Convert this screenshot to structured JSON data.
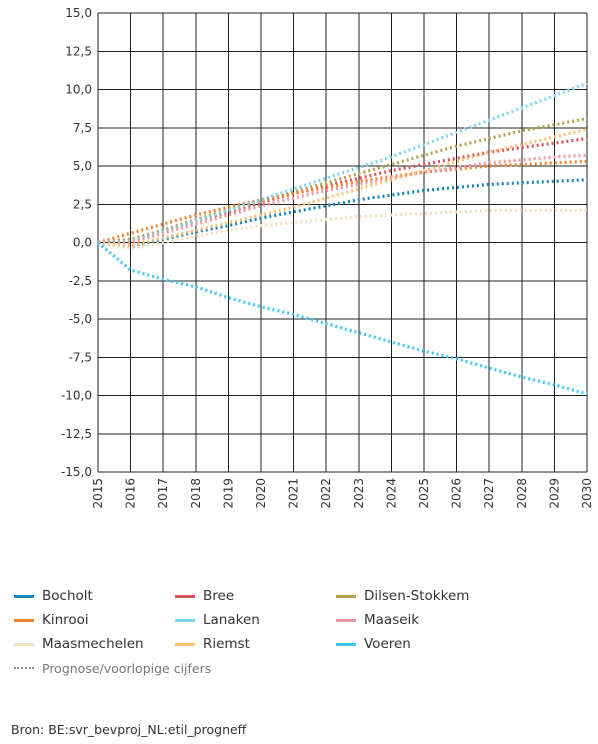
{
  "chart_data": {
    "type": "line",
    "x": [
      2015,
      2016,
      2017,
      2018,
      2019,
      2020,
      2021,
      2022,
      2023,
      2024,
      2025,
      2026,
      2027,
      2028,
      2029,
      2030
    ],
    "xlabels": [
      "2015",
      "2016",
      "2017",
      "2018",
      "2019",
      "2020",
      "2021",
      "2022",
      "2023",
      "2024",
      "2025",
      "2026",
      "2027",
      "2028",
      "2029",
      "2030"
    ],
    "ylim": [
      -15,
      15
    ],
    "yticks": [
      15,
      12.5,
      10,
      7.5,
      5,
      2.5,
      0,
      -2.5,
      -5,
      -7.5,
      -10,
      -12.5,
      -15
    ],
    "ytick_labels": [
      "15,0",
      "12,5",
      "10,0",
      "7,5",
      "5,0",
      "2,5",
      "0,0",
      "-2,5",
      "-5,0",
      "-7,5",
      "-10,0",
      "-12,5",
      "-15,0"
    ],
    "grid": true,
    "series": [
      {
        "name": "Bocholt",
        "color": "#1a86b8",
        "values": [
          0,
          -0.3,
          0.2,
          0.7,
          1.1,
          1.6,
          2.0,
          2.4,
          2.8,
          3.1,
          3.4,
          3.6,
          3.8,
          3.9,
          4.0,
          4.1
        ]
      },
      {
        "name": "Bree",
        "color": "#d9535c",
        "values": [
          0,
          0.2,
          0.8,
          1.4,
          2.0,
          2.6,
          3.2,
          3.7,
          4.2,
          4.7,
          5.1,
          5.5,
          5.9,
          6.2,
          6.5,
          6.8
        ]
      },
      {
        "name": "Dilsen-Stokkem",
        "color": "#b5a04f",
        "values": [
          0,
          0.2,
          0.8,
          1.5,
          2.1,
          2.7,
          3.3,
          3.9,
          4.5,
          5.1,
          5.7,
          6.3,
          6.8,
          7.3,
          7.7,
          8.1
        ]
      },
      {
        "name": "Kinrooi",
        "color": "#ee8434",
        "values": [
          0,
          0.6,
          1.2,
          1.8,
          2.3,
          2.8,
          3.2,
          3.6,
          4.0,
          4.3,
          4.6,
          4.8,
          5.0,
          5.1,
          5.2,
          5.3
        ]
      },
      {
        "name": "Lanaken",
        "color": "#7fd3e8",
        "values": [
          0,
          0.1,
          0.7,
          1.4,
          2.1,
          2.8,
          3.5,
          4.2,
          4.9,
          5.6,
          6.4,
          7.2,
          8.0,
          8.8,
          9.6,
          10.4
        ]
      },
      {
        "name": "Maaseik",
        "color": "#f0959b",
        "values": [
          0,
          0.0,
          0.6,
          1.2,
          1.8,
          2.4,
          2.9,
          3.4,
          3.8,
          4.2,
          4.6,
          4.9,
          5.2,
          5.4,
          5.6,
          5.7
        ]
      },
      {
        "name": "Maasmechelen",
        "color": "#f3e0bd",
        "values": [
          0,
          -0.4,
          0.0,
          0.4,
          0.8,
          1.1,
          1.3,
          1.5,
          1.7,
          1.8,
          1.9,
          2.0,
          2.1,
          2.1,
          2.1,
          2.1
        ]
      },
      {
        "name": "Riemst",
        "color": "#fbc173",
        "values": [
          0,
          -0.2,
          0.3,
          0.8,
          1.3,
          1.8,
          2.3,
          2.9,
          3.5,
          4.1,
          4.7,
          5.3,
          5.9,
          6.4,
          6.9,
          7.4
        ]
      },
      {
        "name": "Voeren",
        "color": "#40c6f2",
        "values": [
          0,
          -1.8,
          -2.4,
          -2.9,
          -3.6,
          -4.2,
          -4.7,
          -5.3,
          -5.9,
          -6.5,
          -7.1,
          -7.6,
          -8.2,
          -8.8,
          -9.3,
          -9.9
        ]
      }
    ]
  },
  "legend": {
    "items": [
      {
        "label": "Bocholt",
        "color": "#1a86b8"
      },
      {
        "label": "Bree",
        "color": "#d9535c"
      },
      {
        "label": "Dilsen-Stokkem",
        "color": "#b5a04f"
      },
      {
        "label": "Kinrooi",
        "color": "#ee8434"
      },
      {
        "label": "Lanaken",
        "color": "#7fd3e8"
      },
      {
        "label": "Maaseik",
        "color": "#f0959b"
      },
      {
        "label": "Maasmechelen",
        "color": "#f3e0bd"
      },
      {
        "label": "Riemst",
        "color": "#fbc173"
      },
      {
        "label": "Voeren",
        "color": "#40c6f2"
      }
    ],
    "note": "Prognose/voorlopige cijfers"
  },
  "source": "Bron: BE:svr_bevproj_NL:etil_progneff"
}
